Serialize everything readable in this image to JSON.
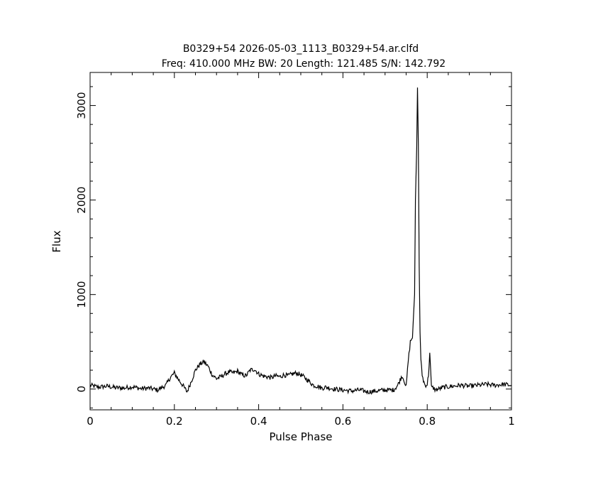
{
  "chart_data": {
    "type": "line",
    "title": "B0329+54 2026-05-03_1113_B0329+54.ar.clfd",
    "subtitle": "Freq: 410.000 MHz BW: 20 Length: 121.485 S/N: 142.792",
    "xlabel": "Pulse Phase",
    "ylabel": "Flux",
    "xlim": [
      0,
      1
    ],
    "ylim": [
      -220,
      3350
    ],
    "x_ticks": [
      {
        "value": 0,
        "label": "0"
      },
      {
        "value": 0.2,
        "label": "0.2"
      },
      {
        "value": 0.4,
        "label": "0.4"
      },
      {
        "value": 0.6,
        "label": "0.6"
      },
      {
        "value": 0.8,
        "label": "0.8"
      },
      {
        "value": 1,
        "label": "1"
      }
    ],
    "y_ticks": [
      {
        "value": 0,
        "label": "0"
      },
      {
        "value": 1000,
        "label": "1000"
      },
      {
        "value": 2000,
        "label": "2000"
      },
      {
        "value": 3000,
        "label": "3000"
      }
    ],
    "grid": false,
    "line_color": "#000000",
    "series": [
      {
        "x": [
          0,
          0.02,
          0.04,
          0.06,
          0.08,
          0.1,
          0.12,
          0.14,
          0.16,
          0.18,
          0.19,
          0.2,
          0.21,
          0.22,
          0.23,
          0.24,
          0.25,
          0.26,
          0.27,
          0.28,
          0.29,
          0.3,
          0.31,
          0.32,
          0.33,
          0.34,
          0.35,
          0.36,
          0.37,
          0.38,
          0.39,
          0.4,
          0.41,
          0.42,
          0.43,
          0.44,
          0.45,
          0.46,
          0.47,
          0.48,
          0.49,
          0.5,
          0.51,
          0.52,
          0.53,
          0.54,
          0.55,
          0.56,
          0.58,
          0.6,
          0.62,
          0.64,
          0.66,
          0.68,
          0.7,
          0.72,
          0.73,
          0.74,
          0.745,
          0.75,
          0.755,
          0.76,
          0.765,
          0.77,
          0.772,
          0.775,
          0.777,
          0.779,
          0.781,
          0.783,
          0.785,
          0.788,
          0.791,
          0.795,
          0.8,
          0.803,
          0.806,
          0.808,
          0.81,
          0.815,
          0.82,
          0.84,
          0.86,
          0.88,
          0.9,
          0.92,
          0.94,
          0.96,
          0.98,
          1
        ],
        "values": [
          40,
          20,
          30,
          15,
          10,
          25,
          5,
          10,
          -10,
          40,
          120,
          170,
          100,
          40,
          -30,
          80,
          200,
          260,
          290,
          240,
          150,
          110,
          130,
          160,
          180,
          170,
          190,
          150,
          140,
          200,
          210,
          160,
          140,
          130,
          120,
          140,
          130,
          150,
          140,
          160,
          170,
          150,
          120,
          80,
          40,
          30,
          10,
          20,
          0,
          -10,
          -20,
          -10,
          -30,
          -20,
          -10,
          -10,
          40,
          140,
          100,
          20,
          300,
          500,
          550,
          1000,
          2000,
          2550,
          3190,
          2600,
          1300,
          600,
          300,
          150,
          90,
          40,
          50,
          150,
          380,
          200,
          20,
          10,
          -10,
          20,
          30,
          40,
          30,
          40,
          50,
          40,
          50,
          40
        ]
      }
    ]
  }
}
